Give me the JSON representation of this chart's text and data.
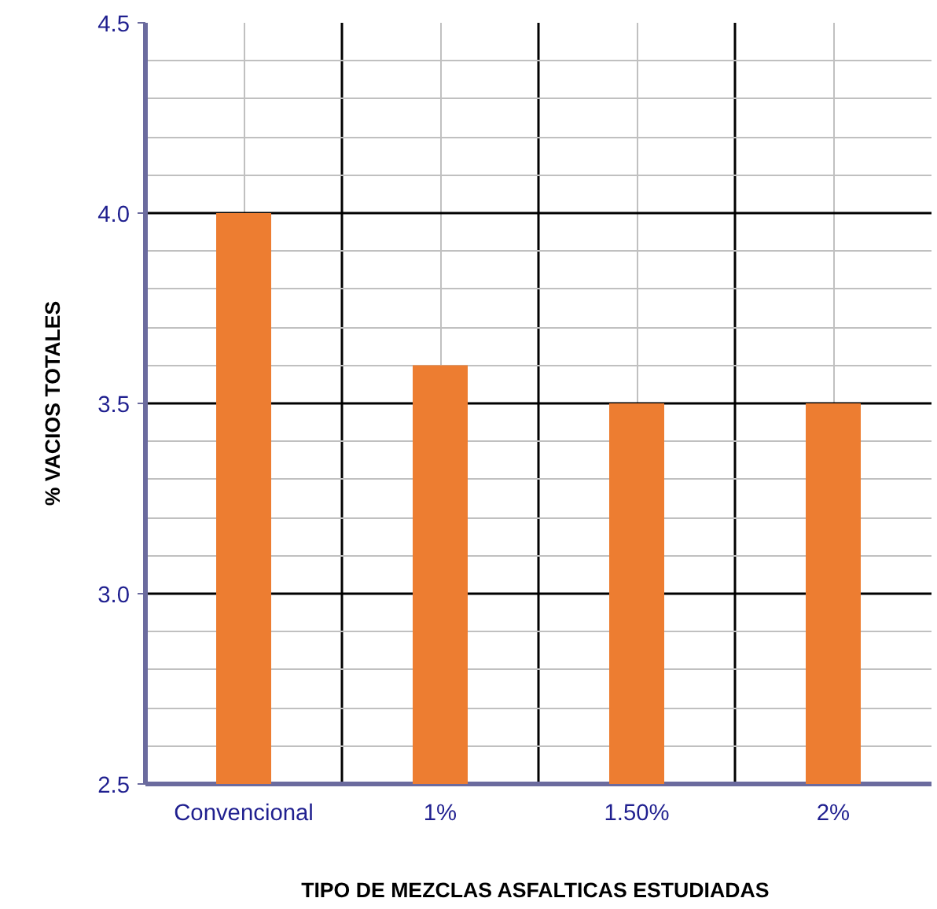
{
  "chart_data": {
    "type": "bar",
    "xlabel": "TIPO DE MEZCLAS ASFALTICAS  ESTUDIADAS",
    "ylabel": "% VACIOS TOTALES",
    "categories": [
      "Convencional",
      "1%",
      "1.50%",
      "2%"
    ],
    "values": [
      4.0,
      3.6,
      3.5,
      3.5
    ],
    "color": "#ed7d31",
    "ylim": [
      2.5,
      4.5
    ],
    "yticks": [
      {
        "value": 2.5,
        "label": "2.5"
      },
      {
        "value": 3.0,
        "label": "3.0"
      },
      {
        "value": 3.5,
        "label": "3.5"
      },
      {
        "value": 4.0,
        "label": "4.0"
      },
      {
        "value": 4.5,
        "label": "4.5"
      }
    ],
    "grid": true
  }
}
